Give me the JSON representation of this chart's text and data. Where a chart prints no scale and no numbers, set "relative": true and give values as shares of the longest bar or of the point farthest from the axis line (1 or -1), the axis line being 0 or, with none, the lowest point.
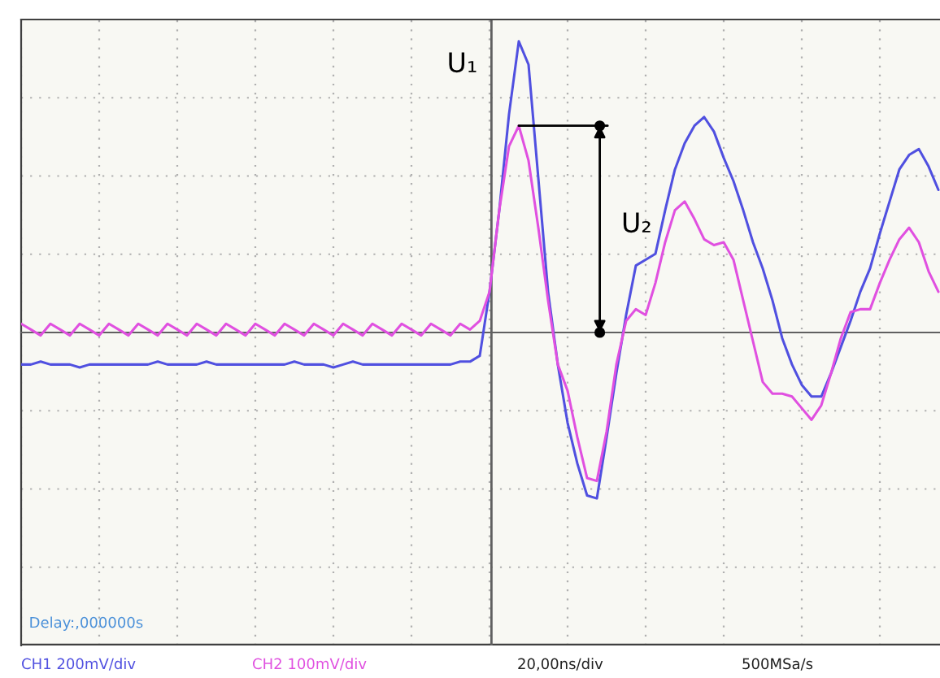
{
  "chart_data": {
    "type": "line",
    "relative": true,
    "grid": true,
    "legend": false,
    "marker": "none",
    "line_style": "solid",
    "categories": [
      null,
      null,
      null,
      null,
      null,
      null,
      null,
      null,
      null,
      null,
      null,
      null,
      null,
      null,
      null,
      null,
      null,
      null,
      null,
      null,
      null,
      null,
      null,
      null,
      null,
      null,
      null,
      null,
      null,
      null,
      null,
      null,
      null,
      null,
      null,
      null,
      null,
      null,
      null,
      null,
      null,
      null,
      null,
      null,
      null,
      null,
      null,
      null,
      null,
      null,
      null,
      null,
      null,
      null,
      null,
      null,
      null,
      null,
      null,
      null,
      null,
      null,
      null,
      null,
      null,
      null,
      null,
      null,
      null,
      null,
      null,
      null,
      null,
      null,
      null,
      null,
      null,
      null,
      null,
      null,
      null,
      null,
      null,
      null,
      null,
      null,
      null,
      null,
      null,
      null,
      null,
      null,
      null,
      null,
      null
    ],
    "series": [
      {
        "color": "#5050e0",
        "values": [
          -0.11,
          -0.11,
          -0.1,
          -0.11,
          -0.11,
          -0.11,
          -0.12,
          -0.11,
          -0.11,
          -0.11,
          -0.11,
          -0.11,
          -0.11,
          -0.11,
          -0.1,
          -0.11,
          -0.11,
          -0.11,
          -0.11,
          -0.1,
          -0.11,
          -0.11,
          -0.11,
          -0.11,
          -0.11,
          -0.11,
          -0.11,
          -0.11,
          -0.1,
          -0.11,
          -0.11,
          -0.11,
          -0.12,
          -0.11,
          -0.1,
          -0.11,
          -0.11,
          -0.11,
          -0.11,
          -0.11,
          -0.11,
          -0.11,
          -0.11,
          -0.11,
          -0.11,
          -0.1,
          -0.1,
          -0.08,
          0.14,
          0.42,
          0.75,
          1.0,
          0.92,
          0.53,
          0.14,
          -0.11,
          -0.31,
          -0.45,
          -0.56,
          -0.57,
          -0.36,
          -0.14,
          0.06,
          0.23,
          0.25,
          0.27,
          0.42,
          0.56,
          0.65,
          0.71,
          0.74,
          0.69,
          0.6,
          0.52,
          0.42,
          0.31,
          0.22,
          0.11,
          -0.02,
          -0.11,
          -0.18,
          -0.22,
          -0.22,
          -0.14,
          -0.05,
          0.04,
          0.14,
          0.22,
          0.34,
          0.45,
          0.56,
          0.61,
          0.63,
          0.57,
          0.49
        ]
      },
      {
        "color": "#e050e0",
        "values": [
          0.03,
          0.01,
          -0.01,
          0.03,
          0.01,
          -0.01,
          0.03,
          0.01,
          -0.01,
          0.03,
          0.01,
          -0.01,
          0.03,
          0.01,
          -0.01,
          0.03,
          0.01,
          -0.01,
          0.03,
          0.01,
          -0.01,
          0.03,
          0.01,
          -0.01,
          0.03,
          0.01,
          -0.01,
          0.03,
          0.01,
          -0.01,
          0.03,
          0.01,
          -0.01,
          0.03,
          0.01,
          -0.01,
          0.03,
          0.01,
          -0.01,
          0.03,
          0.01,
          -0.01,
          0.03,
          0.01,
          -0.01,
          0.03,
          0.01,
          0.04,
          0.14,
          0.42,
          0.64,
          0.71,
          0.59,
          0.36,
          0.11,
          -0.11,
          -0.2,
          -0.36,
          -0.5,
          -0.51,
          -0.34,
          -0.11,
          0.04,
          0.08,
          0.06,
          0.17,
          0.31,
          0.42,
          0.45,
          0.39,
          0.32,
          0.3,
          0.31,
          0.25,
          0.11,
          -0.03,
          -0.17,
          -0.21,
          -0.21,
          -0.22,
          -0.26,
          -0.3,
          -0.25,
          -0.14,
          -0.02,
          0.07,
          0.08,
          0.08,
          0.17,
          0.25,
          0.32,
          0.36,
          0.31,
          0.21,
          0.14
        ]
      }
    ],
    "annotations": [
      "U₁",
      "U₂",
      "Delay:,000000s",
      "CH1 200mV/div",
      "CH2 100mV/div",
      "20,00ns/div",
      "500MSa/s"
    ]
  }
}
